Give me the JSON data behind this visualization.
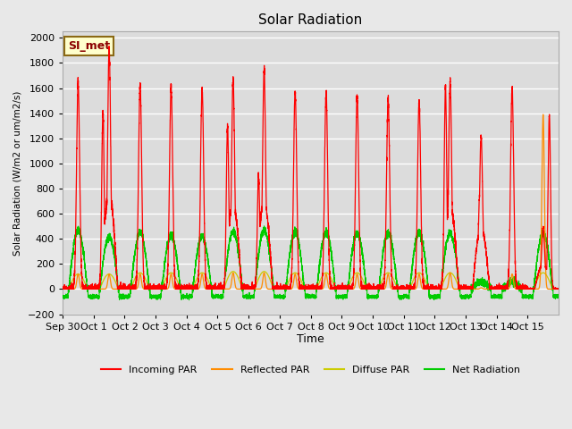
{
  "title": "Solar Radiation",
  "ylabel": "Solar Radiation (W/m2 or um/m2/s)",
  "xlabel": "Time",
  "ylim": [
    -200,
    2050
  ],
  "yticks": [
    -200,
    0,
    200,
    400,
    600,
    800,
    1000,
    1200,
    1400,
    1600,
    1800,
    2000
  ],
  "background_color": "#e8e8e8",
  "plot_bg_color": "#dcdcdc",
  "label_box_text": "SI_met",
  "label_box_facecolor": "#ffffcc",
  "label_box_edgecolor": "#8b6914",
  "legend_entries": [
    "Incoming PAR",
    "Reflected PAR",
    "Diffuse PAR",
    "Net Radiation"
  ],
  "legend_colors": [
    "#ff0000",
    "#ff8c00",
    "#cccc00",
    "#00cc00"
  ],
  "n_days": 16,
  "tick_labels": [
    "Sep 30",
    "Oct 1",
    "Oct 2",
    "Oct 3",
    "Oct 4",
    "Oct 5",
    "Oct 6",
    "Oct 7",
    "Oct 8",
    "Oct 9",
    "Oct 10",
    "Oct 11",
    "Oct 12",
    "Oct 13",
    "Oct 14",
    "Oct 15"
  ],
  "incoming_peaks": [
    1640,
    1920,
    1630,
    1610,
    1600,
    1670,
    1740,
    1580,
    1560,
    1540,
    1510,
    1500,
    1650,
    1220,
    1600,
    490
  ],
  "incoming_secondary_peak": [
    0,
    1410,
    0,
    0,
    0,
    1300,
    900,
    0,
    0,
    0,
    0,
    0,
    1620,
    750,
    0,
    1390
  ],
  "incoming_secondary_pos": [
    0,
    0.3,
    0,
    0,
    0,
    0.32,
    0.32,
    0,
    0,
    0,
    0,
    0,
    0.35,
    0.45,
    0,
    0.7
  ],
  "reflected_peaks": [
    120,
    120,
    120,
    120,
    120,
    130,
    130,
    120,
    120,
    120,
    120,
    120,
    130,
    10,
    120,
    1390
  ],
  "diffuse_peaks": [
    120,
    120,
    130,
    130,
    130,
    140,
    140,
    130,
    130,
    130,
    130,
    130,
    130,
    50,
    50,
    130
  ],
  "net_peaks": [
    470,
    420,
    450,
    430,
    420,
    460,
    470,
    455,
    450,
    445,
    445,
    450,
    445,
    60,
    55,
    450
  ],
  "net_night": -60,
  "seed": 42
}
